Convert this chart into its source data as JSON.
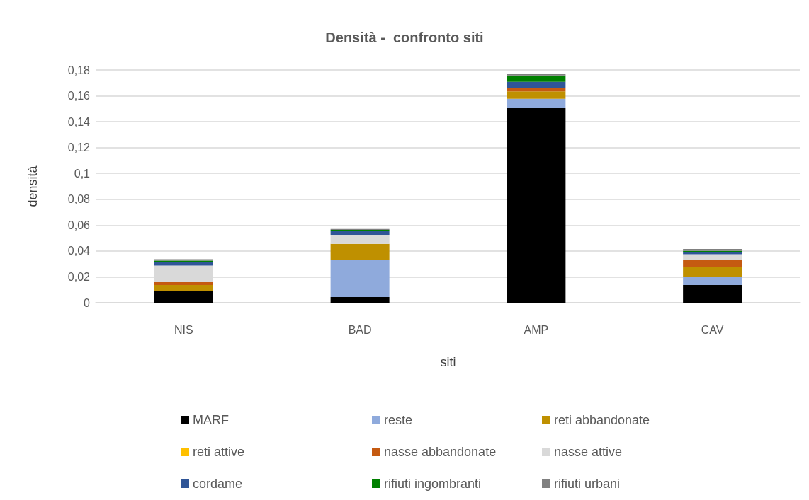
{
  "chart_data": {
    "type": "bar",
    "title": "Densità -  confronto siti",
    "xlabel": "siti",
    "ylabel": "densità",
    "stacked": true,
    "grid": "y",
    "legend": "bottom",
    "categories": [
      "NIS",
      "BAD",
      "AMP",
      "CAV"
    ],
    "ylim": [
      0,
      0.18
    ],
    "yticks": [
      0,
      {
        "value": 0.02,
        "label": "0,02"
      },
      {
        "value": 0.04,
        "label": "0,04"
      },
      {
        "value": 0.06,
        "label": "0,06"
      },
      {
        "value": 0.08,
        "label": "0,08"
      },
      {
        "value": 0.1,
        "label": "0,1"
      },
      {
        "value": 0.12,
        "label": "0,12"
      },
      {
        "value": 0.14,
        "label": "0,14"
      },
      {
        "value": 0.16,
        "label": "0,16"
      },
      {
        "value": 0.18,
        "label": "0,18"
      }
    ],
    "series": [
      {
        "name": "MARF",
        "color": "#000000",
        "values": [
          0.0087,
          0.0044,
          0.1504,
          0.0137
        ]
      },
      {
        "name": "reste",
        "color": "#8faadc",
        "values": [
          0,
          0.0286,
          0.0073,
          0.006
        ]
      },
      {
        "name": "reti abbandonate",
        "color": "#bf9000",
        "values": [
          0.005,
          0.0126,
          0.0058,
          0.0077
        ]
      },
      {
        "name": "reti attive",
        "color": "#ffc000",
        "values": [
          0,
          0,
          0,
          0
        ]
      },
      {
        "name": "nasse abbandonate",
        "color": "#c55a11",
        "values": [
          0.0022,
          0,
          0.0027,
          0.0055
        ]
      },
      {
        "name": "nasse attive",
        "color": "#d9d9d9",
        "values": [
          0.0128,
          0.0069,
          0,
          0.0046
        ]
      },
      {
        "name": "cordame",
        "color": "#2f5597",
        "values": [
          0.0029,
          0.0031,
          0.0047,
          0.0013
        ]
      },
      {
        "name": "rifiuti ingombranti",
        "color": "#008000",
        "values": [
          0.001,
          0.0007,
          0.0049,
          0.0013
        ]
      },
      {
        "name": "rifiuti urbani",
        "color": "#808080",
        "values": [
          0.001,
          0.0007,
          0.0015,
          0.0015
        ]
      }
    ]
  }
}
